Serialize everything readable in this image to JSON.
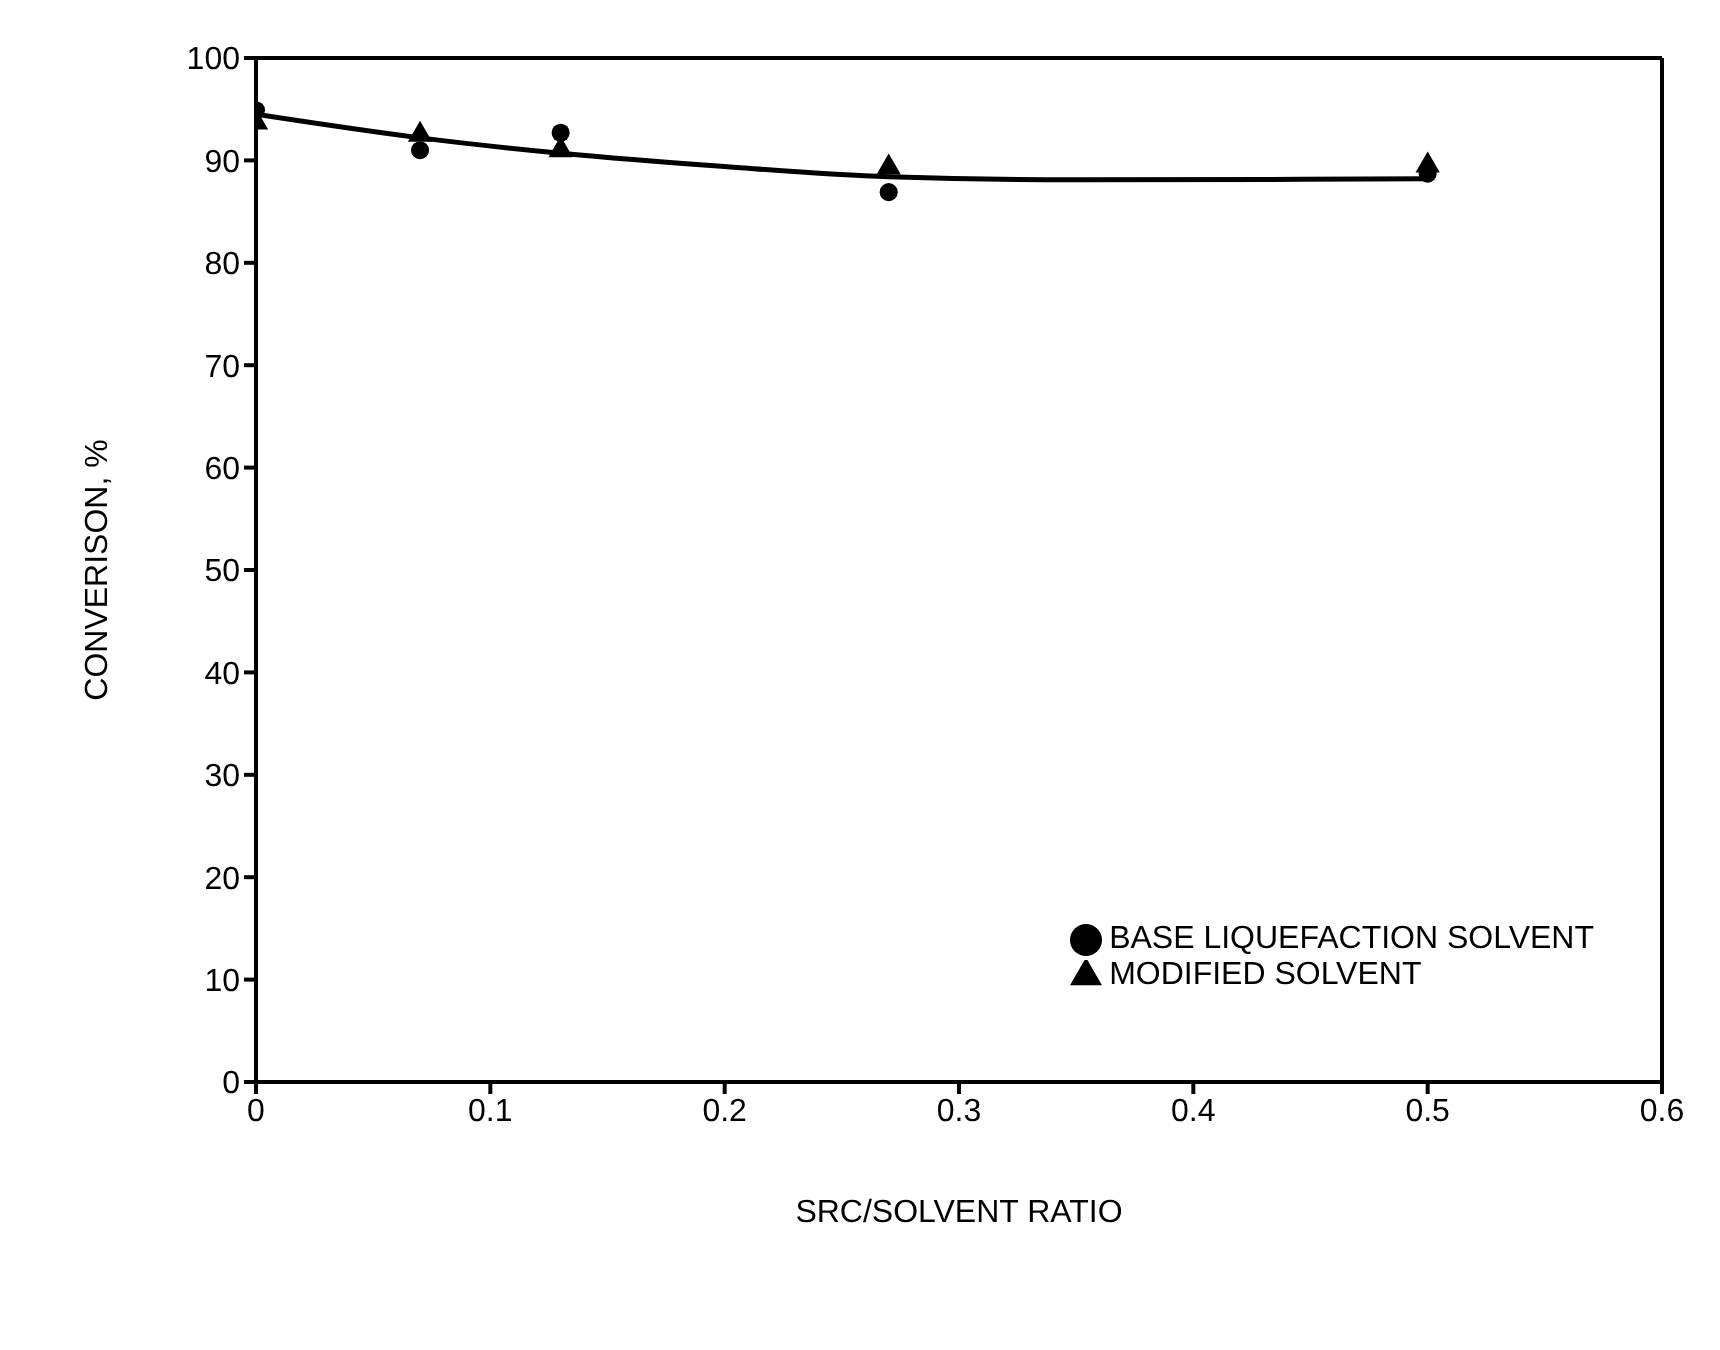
{
  "chart_data": {
    "type": "scatter",
    "xlabel": "SRC/SOLVENT RATIO",
    "ylabel": "CONVERISON, %",
    "xlim": [
      0,
      0.6
    ],
    "xticks": [
      0,
      0.1,
      0.2,
      0.3,
      0.4,
      0.5,
      0.6
    ],
    "ylim": [
      0,
      100
    ],
    "yticks": [
      0,
      10,
      20,
      30,
      40,
      50,
      60,
      70,
      80,
      90,
      100
    ],
    "grid": false,
    "legend": "bottom right",
    "series": [
      {
        "name": "BASE LIQUEFACTION SOLVENT",
        "color": "#000000",
        "marker": "circle",
        "x": [
          0,
          0.07,
          0.13,
          0.27,
          0.5
        ],
        "values": [
          94.9,
          91,
          92.7,
          86.9,
          88.7
        ]
      },
      {
        "name": "MODIFIED SOLVENT",
        "color": "#000000",
        "marker": "triangle",
        "x": [
          0,
          0.07,
          0.13,
          0.27,
          0.5
        ],
        "values": [
          93.7,
          92.5,
          91,
          89.3,
          89.5
        ]
      },
      {
        "type": "line",
        "color": "#000000",
        "marker": "none",
        "line_style": "solid",
        "x": [
          0,
          0.07,
          0.13,
          0.2,
          0.27,
          0.35,
          0.5
        ],
        "values": [
          94.5,
          92.2,
          90.7,
          89.4,
          88.4,
          88.1,
          88.2
        ]
      }
    ]
  }
}
